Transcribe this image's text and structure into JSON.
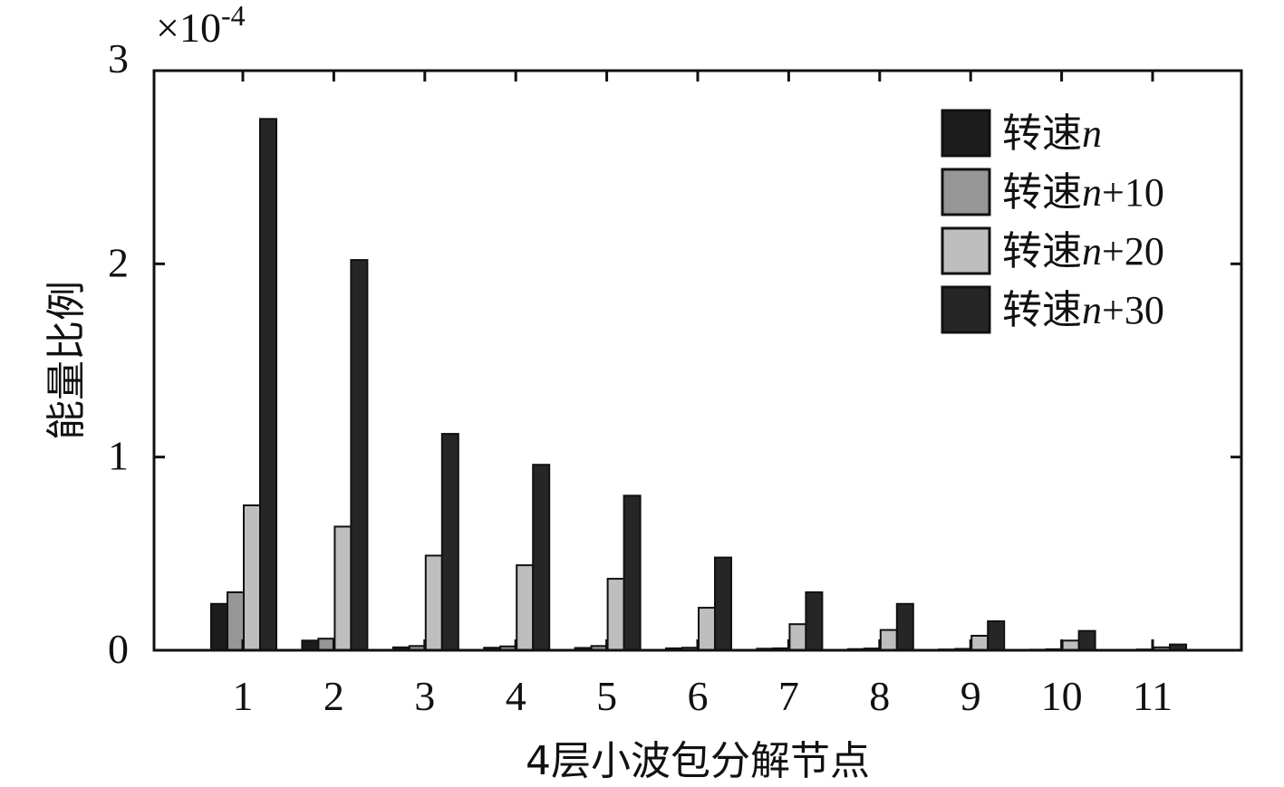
{
  "chart_data": {
    "type": "bar",
    "title": "",
    "xlabel": "4层小波包分解节点",
    "ylabel": "能量比例",
    "y_multiplier": "×10",
    "y_exponent": "-4",
    "ylim": [
      0,
      3
    ],
    "yticks": [
      "0",
      "1",
      "2",
      "3"
    ],
    "categories": [
      "1",
      "2",
      "3",
      "4",
      "5",
      "6",
      "7",
      "8",
      "9",
      "10",
      "11"
    ],
    "legend_position": "top-right",
    "grid": false,
    "series": [
      {
        "name_prefix": "转速",
        "name_var": "n",
        "name_suffix": "",
        "color": "#1c1c1c",
        "values": [
          0.24,
          0.05,
          0.015,
          0.013,
          0.012,
          0.01,
          0.008,
          0.006,
          0.004,
          0.003,
          0.002
        ]
      },
      {
        "name_prefix": "转速",
        "name_var": "n",
        "name_suffix": "+10",
        "color": "#969696",
        "values": [
          0.3,
          0.06,
          0.022,
          0.02,
          0.022,
          0.013,
          0.01,
          0.009,
          0.007,
          0.005,
          0.004
        ]
      },
      {
        "name_prefix": "转速",
        "name_var": "n",
        "name_suffix": "+20",
        "color": "#bebebe",
        "values": [
          0.75,
          0.64,
          0.49,
          0.44,
          0.37,
          0.22,
          0.135,
          0.105,
          0.075,
          0.05,
          0.015
        ]
      },
      {
        "name_prefix": "转速",
        "name_var": "n",
        "name_suffix": "+30",
        "color": "#262626",
        "values": [
          2.75,
          2.02,
          1.12,
          0.96,
          0.8,
          0.48,
          0.3,
          0.24,
          0.15,
          0.1,
          0.03
        ]
      }
    ]
  }
}
